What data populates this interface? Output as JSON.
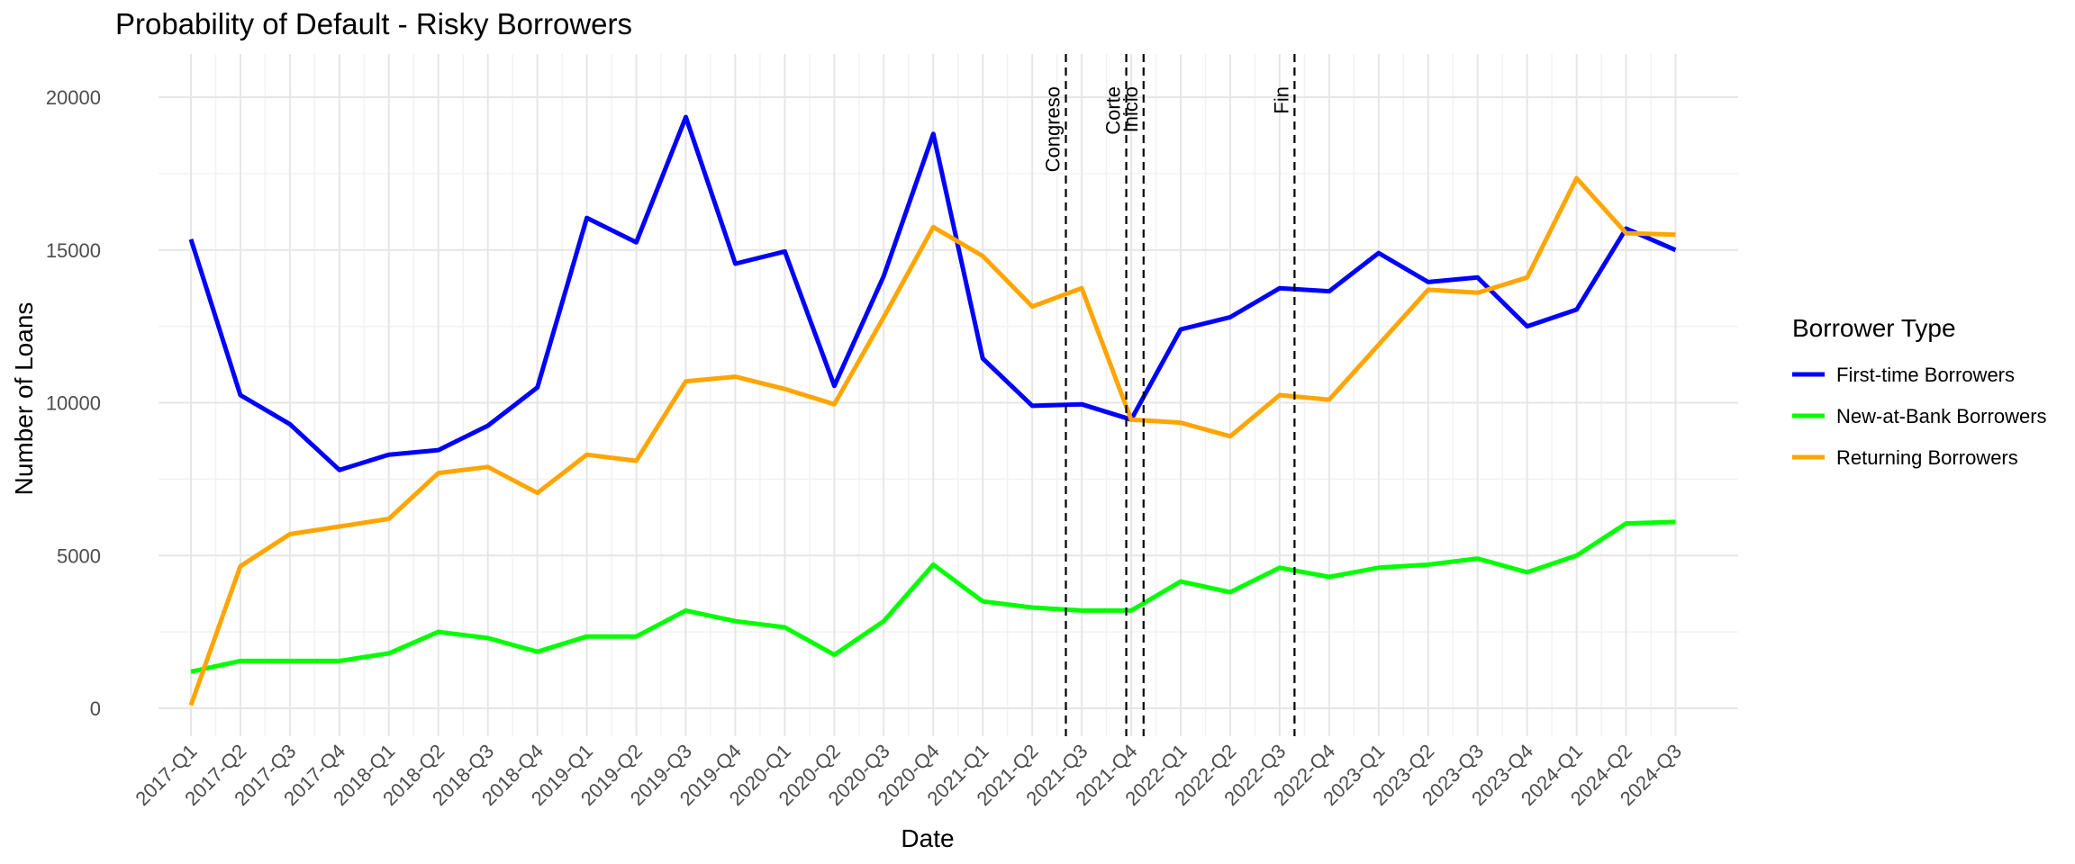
{
  "chart_data": {
    "type": "line",
    "title": "Probability of Default - Risky Borrowers",
    "xlabel": "Date",
    "ylabel": "Number of Loans",
    "ylim": [
      -1000,
      21000
    ],
    "yticks": [
      0,
      5000,
      10000,
      15000,
      20000
    ],
    "grid": true,
    "legend_position": "right",
    "legend_title": "Borrower Type",
    "categories": [
      "2017-Q1",
      "2017-Q2",
      "2017-Q3",
      "2017-Q4",
      "2018-Q1",
      "2018-Q2",
      "2018-Q3",
      "2018-Q4",
      "2019-Q1",
      "2019-Q2",
      "2019-Q3",
      "2019-Q4",
      "2020-Q1",
      "2020-Q2",
      "2020-Q3",
      "2020-Q4",
      "2021-Q1",
      "2021-Q2",
      "2021-Q3",
      "2021-Q4",
      "2022-Q1",
      "2022-Q2",
      "2022-Q3",
      "2022-Q4",
      "2023-Q1",
      "2023-Q2",
      "2023-Q3",
      "2023-Q4",
      "2024-Q1",
      "2024-Q2",
      "2024-Q3"
    ],
    "series": [
      {
        "name": "First-time Borrowers",
        "color": "#0000FF",
        "values": [
          15350,
          10250,
          9300,
          7800,
          8300,
          8450,
          9250,
          10500,
          16050,
          15250,
          19350,
          14550,
          14950,
          10550,
          14150,
          18800,
          11450,
          9900,
          9950,
          9450,
          12400,
          12800,
          13750,
          13650,
          14900,
          13950,
          14100,
          12500,
          13050,
          15700,
          15000
        ]
      },
      {
        "name": "New-at-Bank Borrowers",
        "color": "#00FF00",
        "values": [
          1200,
          1550,
          1550,
          1550,
          1800,
          2500,
          2300,
          1850,
          2350,
          2350,
          3200,
          2850,
          2650,
          1750,
          2850,
          4700,
          3500,
          3300,
          3200,
          3200,
          4150,
          3800,
          4600,
          4300,
          4600,
          4700,
          4900,
          4450,
          5000,
          6050,
          6100
        ]
      },
      {
        "name": "Returning Borrowers",
        "color": "#FFA500",
        "values": [
          100,
          4650,
          5700,
          5950,
          6200,
          7700,
          7900,
          7050,
          8300,
          8100,
          10700,
          10850,
          10450,
          9950,
          12800,
          15750,
          14800,
          13150,
          13750,
          9450,
          9350,
          8900,
          10250,
          10100,
          11900,
          13700,
          13600,
          14100,
          17350,
          15550,
          15500
        ]
      }
    ],
    "vlines": [
      {
        "label": "Congreso",
        "position": "2021-Q2",
        "x": 17.68
      },
      {
        "label": "Corte",
        "position": "2021-Q3",
        "x": 18.9
      },
      {
        "label": "Inicio",
        "position": "2021-Q3",
        "x": 19.25
      },
      {
        "label": "Fin",
        "position": "2022-Q4",
        "x": 22.3
      }
    ]
  }
}
